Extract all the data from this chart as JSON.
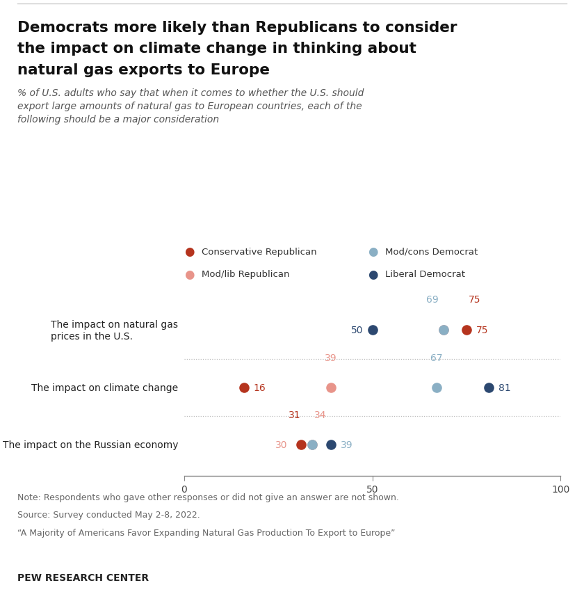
{
  "title_line1": "Democrats more likely than Republicans to consider",
  "title_line2": "the impact on climate change in thinking about",
  "title_line3": "natural gas exports to Europe",
  "subtitle": "% of U.S. adults who say that when it comes to whether the U.S. should\nexport large amounts of natural gas to European countries, each of the\nfollowing should be a major consideration",
  "categories": [
    "The impact on natural gas\nprices in the U.S.",
    "The impact on climate change",
    "The impact on the Russian economy"
  ],
  "series": {
    "Conservative Republican": {
      "color": "#b5341e",
      "values": [
        75,
        16,
        31
      ]
    },
    "Mod/lib Republican": {
      "color": "#e8948a",
      "values": [
        69,
        39,
        34
      ]
    },
    "Mod/cons Democrat": {
      "color": "#8aafc4",
      "values": [
        69,
        67,
        34
      ]
    },
    "Liberal Democrat": {
      "color": "#2c4870",
      "values": [
        50,
        81,
        39
      ]
    }
  },
  "note_line1": "Note: Respondents who gave other responses or did not give an answer are not shown.",
  "note_line2": "Source: Survey conducted May 2-8, 2022.",
  "note_line3": "“A Majority of Americans Favor Expanding Natural Gas Production To Export to Europe”",
  "footer": "PEW RESEARCH CENTER",
  "background_color": "#ffffff"
}
